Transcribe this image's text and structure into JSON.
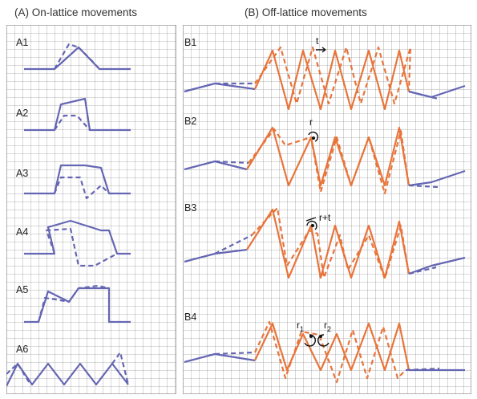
{
  "titles": {
    "a": "(A) On-lattice movements",
    "b": "(B) Off-lattice movements"
  },
  "colors": {
    "grid": "#9c9c9c",
    "lattice": "#6466b3",
    "offlattice": "#e8743a",
    "background": "#ffffff"
  },
  "panel_a": {
    "labels": [
      "A1",
      "A2",
      "A3",
      "A4",
      "A5",
      "A6"
    ]
  },
  "panel_b": {
    "labels": [
      "B1",
      "B2",
      "B3",
      "B4"
    ],
    "annotations": {
      "b1": "t",
      "b2": "r",
      "b3": "r+t",
      "b4_left": "r",
      "b4_left_sub": "1",
      "b4_right": "r",
      "b4_right_sub": "2"
    }
  }
}
